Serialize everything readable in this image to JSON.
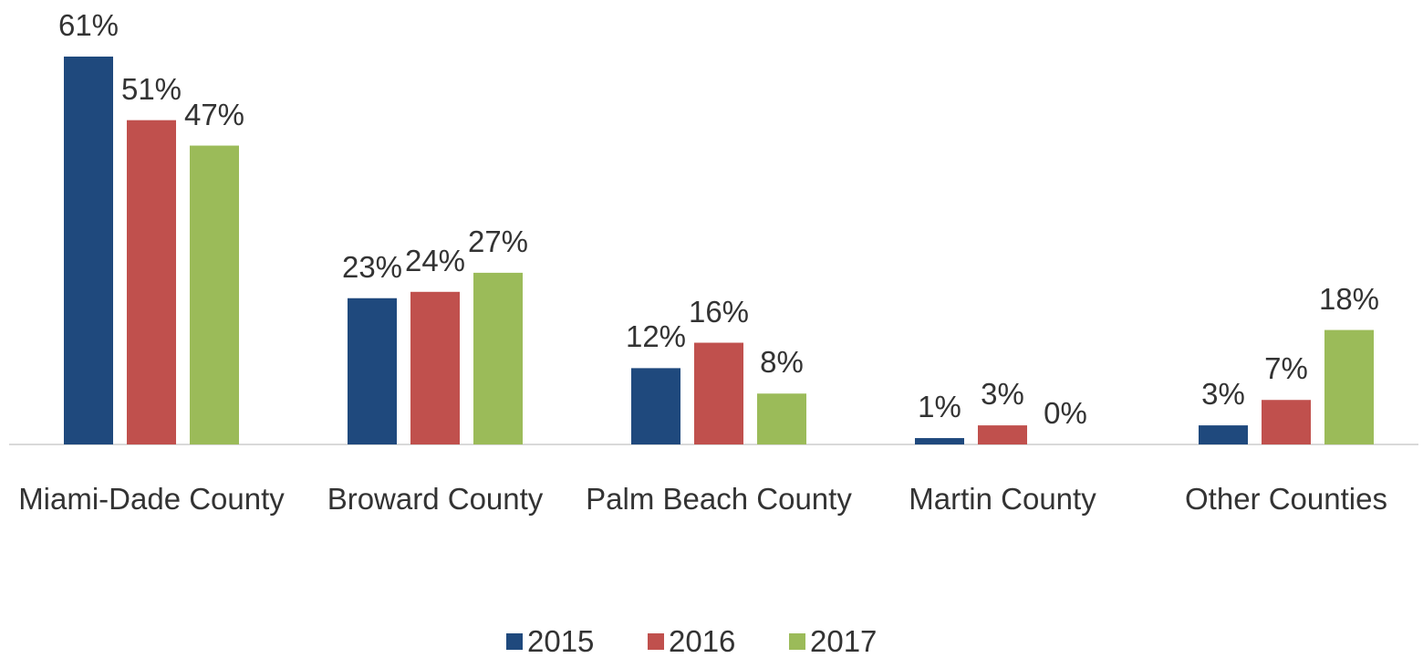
{
  "chart_data": {
    "type": "bar",
    "categories": [
      "Miami-Dade County",
      "Broward County",
      "Palm Beach County",
      "Martin County",
      "Other Counties"
    ],
    "series": [
      {
        "name": "2015",
        "color": "#1f497d",
        "values": [
          61,
          23,
          12,
          1,
          3
        ],
        "value_labels": [
          "61%",
          "23%",
          "12%",
          "1%",
          "3%"
        ]
      },
      {
        "name": "2016",
        "color": "#c0504d",
        "values": [
          51,
          24,
          16,
          3,
          7
        ],
        "value_labels": [
          "51%",
          "24%",
          "16%",
          "3%",
          "7%"
        ]
      },
      {
        "name": "2017",
        "color": "#9bbb59",
        "values": [
          47,
          27,
          8,
          0,
          18
        ],
        "value_labels": [
          "47%",
          "27%",
          "8%",
          "0%",
          "18%"
        ]
      }
    ],
    "legend": "bottom"
  }
}
